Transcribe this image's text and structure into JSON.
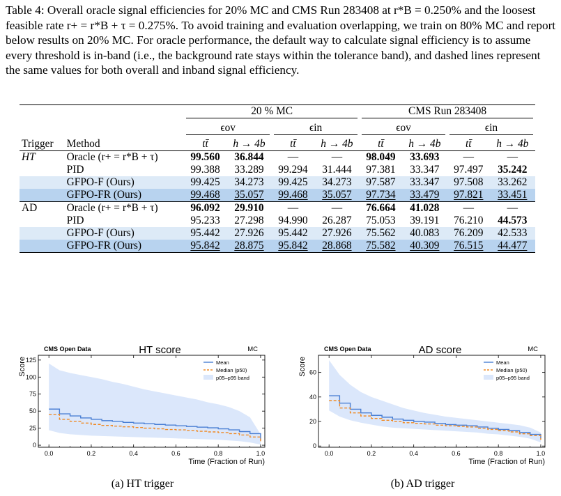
{
  "caption": {
    "label": "Table 4:",
    "text": "Overall oracle signal efficiencies for 20% MC and CMS Run 283408 at r*B = 0.250% and the loosest feasible rate r+ = r*B + τ = 0.275%. To avoid training and evaluation overlapping, we train on 80% MC and report below results on 20% MC. For oracle performance, the default way to calculate signal efficiency is to assume every threshold is in-band (i.e., the background rate stays within the tolerance band), and dashed lines represent the same values for both overall and inband signal efficiency."
  },
  "table": {
    "group_headers": [
      "20 % MC",
      "CMS Run 283408"
    ],
    "sub_headers": [
      "ϵov",
      "ϵin",
      "ϵov",
      "ϵin"
    ],
    "col_trigger": "Trigger",
    "col_method": "Method",
    "col_cols": [
      "tt̄",
      "h → 4b",
      "tt̄",
      "h → 4b",
      "tt̄",
      "h → 4b",
      "tt̄",
      "h → 4b"
    ],
    "sections": [
      {
        "trigger": "HT",
        "rows": [
          {
            "method": "Oracle (r+ = r*B + τ)",
            "values": [
              "99.560",
              "36.844",
              "—",
              "—",
              "98.049",
              "33.693",
              "—",
              "—"
            ]
          },
          {
            "method": "PID",
            "values": [
              "99.388",
              "33.289",
              "99.294",
              "31.444",
              "97.381",
              "33.347",
              "97.497",
              "35.242"
            ]
          },
          {
            "method": "GFPO-F (Ours)",
            "values": [
              "99.425",
              "34.273",
              "99.425",
              "34.273",
              "97.587",
              "33.347",
              "97.508",
              "33.262"
            ]
          },
          {
            "method": "GFPO-FR (Ours)",
            "values": [
              "99.468",
              "35.057",
              "99.468",
              "35.057",
              "97.734",
              "33.479",
              "97.821",
              "33.451"
            ]
          }
        ]
      },
      {
        "trigger": "AD",
        "rows": [
          {
            "method": "Oracle (r+ = r*B + τ)",
            "values": [
              "96.092",
              "29.910",
              "—",
              "—",
              "76.664",
              "41.028",
              "—",
              "—"
            ]
          },
          {
            "method": "PID",
            "values": [
              "95.233",
              "27.298",
              "94.990",
              "26.287",
              "75.053",
              "39.191",
              "76.210",
              "44.573"
            ]
          },
          {
            "method": "GFPO-F (Ours)",
            "values": [
              "95.442",
              "27.926",
              "95.442",
              "27.926",
              "75.562",
              "40.083",
              "76.209",
              "42.533"
            ]
          },
          {
            "method": "GFPO-FR (Ours)",
            "values": [
              "95.842",
              "28.875",
              "95.842",
              "28.868",
              "75.582",
              "40.309",
              "76.515",
              "44.477"
            ]
          }
        ]
      }
    ]
  },
  "figures": [
    {
      "caption": "(a) HT trigger",
      "chart_data": {
        "type": "line",
        "title": "HT score",
        "brand": "CMS Open Data",
        "tag": "MC",
        "xlabel": "Time (Fraction of Run)",
        "ylabel": "Score",
        "xlim": [
          -0.05,
          1.02
        ],
        "ylim": [
          -3,
          132
        ],
        "xticks": [
          "0.0",
          "0.2",
          "0.4",
          "0.6",
          "0.8",
          "1.0"
        ],
        "yticks": [
          "0",
          "25",
          "50",
          "75",
          "100",
          "125"
        ],
        "legend": [
          "Mean",
          "Median (p50)",
          "p05–p95 band"
        ],
        "legend_position": "top-right",
        "x": [
          0.0,
          0.05,
          0.1,
          0.15,
          0.2,
          0.25,
          0.3,
          0.35,
          0.4,
          0.45,
          0.5,
          0.55,
          0.6,
          0.65,
          0.7,
          0.75,
          0.8,
          0.85,
          0.9,
          0.95,
          1.0
        ],
        "series": [
          {
            "name": "Mean",
            "color": "#4a7fd4",
            "values": [
              53,
              46,
              43,
              40,
              38,
              36,
              35,
              33.5,
              32.5,
              31.5,
              30.5,
              29.5,
              28.5,
              27.5,
              26.5,
              25.5,
              24,
              22.5,
              20,
              17,
              7
            ]
          },
          {
            "name": "Median (p50)",
            "color": "#f08a24",
            "values": [
              45,
              38,
              35,
              32.5,
              30.5,
              29,
              28,
              27,
              26,
              25,
              24,
              23,
              22.5,
              21.5,
              20.5,
              19.5,
              18.5,
              17,
              15,
              12,
              5
            ]
          },
          {
            "name": "p05–p95 band",
            "color": "#dbe7fb",
            "upper": [
              120,
              110,
              106,
              103,
              100,
              97,
              93,
              90,
              86,
              82,
              79,
              76,
              73,
              70,
              67,
              63,
              60,
              56,
              50,
              41,
              16
            ],
            "lower": [
              22,
              18,
              16,
              15,
              14,
              13.5,
              13,
              12.5,
              12,
              11.5,
              11,
              10.5,
              10,
              9.5,
              9,
              8.5,
              8,
              7,
              6,
              4,
              1
            ]
          }
        ]
      }
    },
    {
      "caption": "(b) AD trigger",
      "chart_data": {
        "type": "line",
        "title": "AD score",
        "brand": "CMS Open Data",
        "tag": "MC",
        "xlabel": "Time (Fraction of Run)",
        "ylabel": "Score",
        "xlim": [
          -0.05,
          1.02
        ],
        "ylim": [
          -1,
          74
        ],
        "xticks": [
          "0.0",
          "0.2",
          "0.4",
          "0.6",
          "0.8",
          "1.0"
        ],
        "yticks": [
          "0",
          "20",
          "40",
          "60"
        ],
        "legend": [
          "Mean",
          "Median (p50)",
          "p05–p95 band"
        ],
        "legend_position": "top-right",
        "x": [
          0.0,
          0.05,
          0.1,
          0.15,
          0.2,
          0.25,
          0.3,
          0.35,
          0.4,
          0.45,
          0.5,
          0.55,
          0.6,
          0.65,
          0.7,
          0.75,
          0.8,
          0.85,
          0.9,
          0.95,
          1.0
        ],
        "series": [
          {
            "name": "Mean",
            "color": "#4a7fd4",
            "values": [
              41,
              35,
              30,
              27,
              25,
              23.5,
              22,
              21,
              20,
              19.5,
              18.5,
              17.5,
              17,
              16.5,
              15.5,
              14.5,
              13.5,
              12.5,
              11,
              9.5,
              6
            ]
          },
          {
            "name": "Median (p50)",
            "color": "#f08a24",
            "values": [
              37,
              31,
              27,
              24.5,
              22.5,
              21,
              20,
              19,
              18.5,
              18,
              17,
              16.5,
              16,
              15.5,
              14.5,
              13.5,
              12.5,
              11.5,
              10,
              8.5,
              5
            ]
          },
          {
            "name": "p05–p95 band",
            "color": "#dbe7fb",
            "upper": [
              70,
              58,
              50,
              44,
              40,
              37,
              34,
              31,
              29,
              27,
              25.5,
              24,
              23,
              22,
              21,
              20,
              19,
              18,
              17,
              15,
              11
            ],
            "lower": [
              29,
              24,
              21,
              19,
              17.5,
              16,
              15,
              14.5,
              14,
              13.5,
              13,
              12.5,
              12,
              11.5,
              11,
              10,
              9.5,
              8.5,
              7.5,
              6,
              3
            ]
          }
        ]
      }
    }
  ]
}
